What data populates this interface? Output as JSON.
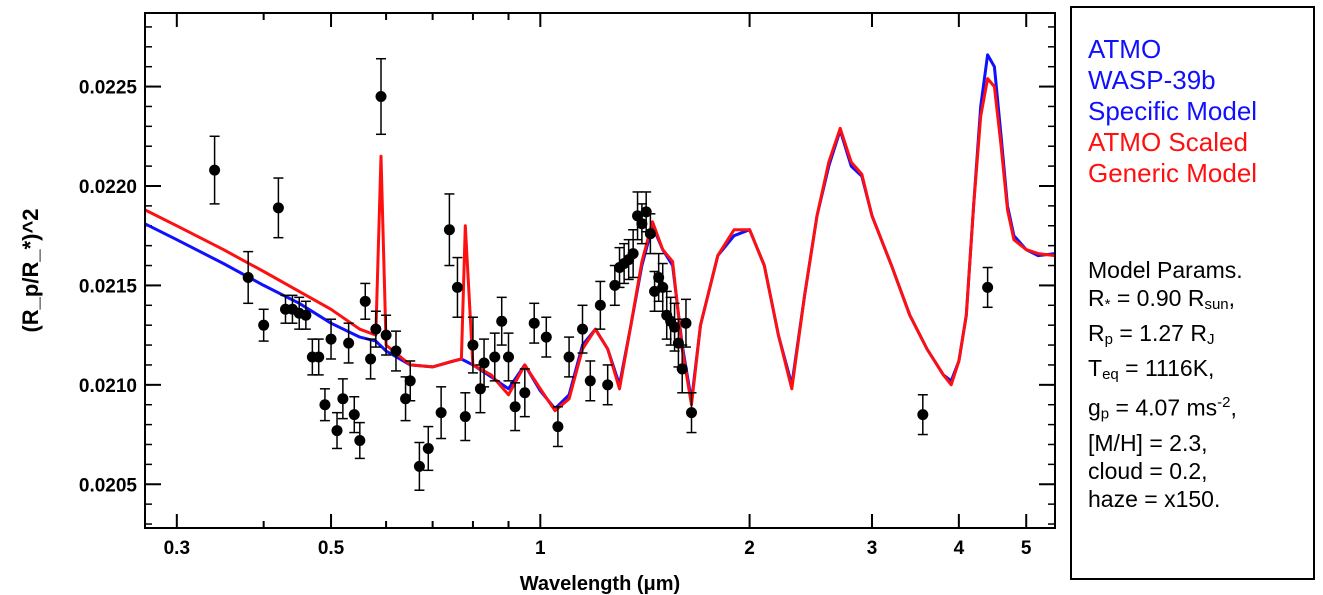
{
  "chart_data": {
    "type": "line",
    "xlabel": "Wavelength (μm)",
    "ylabel": "(R_p/R_*)^2",
    "xscale": "log",
    "xlim": [
      0.27,
      5.5
    ],
    "ylim": [
      0.02028,
      0.02287
    ],
    "xticks": [
      {
        "value": 0.3,
        "label": "0.3"
      },
      {
        "value": 0.5,
        "label": "0.5"
      },
      {
        "value": 1,
        "label": "1"
      },
      {
        "value": 2,
        "label": "2"
      },
      {
        "value": 3,
        "label": "3"
      },
      {
        "value": 4,
        "label": "4"
      },
      {
        "value": 5,
        "label": "5"
      }
    ],
    "yticks": [
      {
        "value": 0.0205,
        "label": "0.0205"
      },
      {
        "value": 0.021,
        "label": "0.0210"
      },
      {
        "value": 0.0215,
        "label": "0.0215"
      },
      {
        "value": 0.022,
        "label": "0.0220"
      },
      {
        "value": 0.0225,
        "label": "0.0225"
      }
    ],
    "series": [
      {
        "name": "ATMO WASP-39b Specific Model",
        "color": "#1010ff",
        "x": [
          0.27,
          0.3,
          0.35,
          0.4,
          0.45,
          0.5,
          0.55,
          0.58,
          0.6,
          0.65,
          0.7,
          0.75,
          0.77,
          0.8,
          0.85,
          0.9,
          0.95,
          1.0,
          1.05,
          1.1,
          1.15,
          1.2,
          1.25,
          1.3,
          1.35,
          1.4,
          1.45,
          1.5,
          1.55,
          1.6,
          1.65,
          1.7,
          1.8,
          1.9,
          2.0,
          2.1,
          2.2,
          2.3,
          2.4,
          2.5,
          2.6,
          2.7,
          2.8,
          2.9,
          3.0,
          3.2,
          3.4,
          3.6,
          3.8,
          3.9,
          4.0,
          4.1,
          4.2,
          4.3,
          4.4,
          4.5,
          4.6,
          4.7,
          4.8,
          5.0,
          5.2,
          5.5
        ],
        "y": [
          0.02181,
          0.02173,
          0.02161,
          0.0215,
          0.02141,
          0.02131,
          0.02124,
          0.02122,
          0.02117,
          0.0211,
          0.02109,
          0.02112,
          0.02113,
          0.0211,
          0.02104,
          0.02098,
          0.0211,
          0.02097,
          0.02088,
          0.02095,
          0.0212,
          0.02128,
          0.02118,
          0.021,
          0.0213,
          0.0216,
          0.0218,
          0.02168,
          0.0216,
          0.0212,
          0.02092,
          0.0213,
          0.02165,
          0.02175,
          0.02178,
          0.0216,
          0.02125,
          0.021,
          0.02145,
          0.02185,
          0.0221,
          0.02228,
          0.0221,
          0.02205,
          0.02185,
          0.0216,
          0.02135,
          0.02118,
          0.02105,
          0.02102,
          0.02112,
          0.02135,
          0.0219,
          0.0224,
          0.02266,
          0.0226,
          0.02225,
          0.0219,
          0.02175,
          0.02168,
          0.02165,
          0.02166
        ]
      },
      {
        "name": "ATMO Scaled Generic Model",
        "color": "#ff1010",
        "x": [
          0.27,
          0.3,
          0.35,
          0.4,
          0.45,
          0.5,
          0.55,
          0.58,
          0.59,
          0.6,
          0.65,
          0.7,
          0.75,
          0.77,
          0.78,
          0.8,
          0.85,
          0.9,
          0.95,
          1.0,
          1.05,
          1.1,
          1.15,
          1.2,
          1.25,
          1.3,
          1.35,
          1.4,
          1.45,
          1.5,
          1.55,
          1.6,
          1.65,
          1.7,
          1.8,
          1.9,
          2.0,
          2.1,
          2.2,
          2.3,
          2.4,
          2.5,
          2.6,
          2.7,
          2.8,
          2.9,
          3.0,
          3.2,
          3.4,
          3.6,
          3.8,
          3.9,
          4.0,
          4.1,
          4.2,
          4.3,
          4.4,
          4.5,
          4.6,
          4.7,
          4.8,
          5.0,
          5.2,
          5.5
        ],
        "y": [
          0.02188,
          0.0218,
          0.02168,
          0.02157,
          0.02147,
          0.02138,
          0.02128,
          0.02125,
          0.02215,
          0.0212,
          0.0211,
          0.02109,
          0.02112,
          0.02113,
          0.0218,
          0.0211,
          0.02105,
          0.02095,
          0.0211,
          0.02098,
          0.02087,
          0.02093,
          0.02118,
          0.02128,
          0.02118,
          0.02098,
          0.0213,
          0.02162,
          0.02182,
          0.02168,
          0.02162,
          0.02118,
          0.0209,
          0.0213,
          0.02165,
          0.02178,
          0.02178,
          0.0216,
          0.02125,
          0.02098,
          0.02145,
          0.02185,
          0.02212,
          0.02229,
          0.02212,
          0.02206,
          0.02185,
          0.0216,
          0.02135,
          0.02118,
          0.02105,
          0.021,
          0.02112,
          0.02135,
          0.0219,
          0.02235,
          0.02254,
          0.0225,
          0.0222,
          0.02188,
          0.02173,
          0.02168,
          0.02166,
          0.02165
        ]
      },
      {
        "name": "data",
        "color": "#000000",
        "type": "scatter",
        "x": [
          0.34,
          0.38,
          0.4,
          0.42,
          0.43,
          0.44,
          0.45,
          0.46,
          0.47,
          0.48,
          0.49,
          0.5,
          0.51,
          0.52,
          0.53,
          0.54,
          0.55,
          0.56,
          0.57,
          0.58,
          0.59,
          0.6,
          0.62,
          0.64,
          0.65,
          0.67,
          0.69,
          0.72,
          0.74,
          0.76,
          0.78,
          0.8,
          0.82,
          0.83,
          0.86,
          0.88,
          0.9,
          0.92,
          0.95,
          0.98,
          1.02,
          1.06,
          1.1,
          1.15,
          1.18,
          1.22,
          1.25,
          1.28,
          1.3,
          1.32,
          1.34,
          1.36,
          1.38,
          1.4,
          1.42,
          1.44,
          1.46,
          1.48,
          1.5,
          1.52,
          1.54,
          1.56,
          1.58,
          1.6,
          1.62,
          1.65,
          4.4,
          3.55
        ],
        "y": [
          0.02208,
          0.02154,
          0.0213,
          0.02189,
          0.02138,
          0.02138,
          0.02136,
          0.02135,
          0.02114,
          0.02114,
          0.0209,
          0.02123,
          0.02077,
          0.02093,
          0.02121,
          0.02085,
          0.02072,
          0.02142,
          0.02113,
          0.02128,
          0.02245,
          0.02125,
          0.02117,
          0.02093,
          0.02102,
          0.02059,
          0.02068,
          0.02086,
          0.02178,
          0.02149,
          0.02084,
          0.0212,
          0.02098,
          0.02111,
          0.02114,
          0.02132,
          0.02114,
          0.02089,
          0.02096,
          0.02131,
          0.02124,
          0.02079,
          0.02114,
          0.02128,
          0.02102,
          0.0214,
          0.021,
          0.0215,
          0.02159,
          0.02161,
          0.02163,
          0.02166,
          0.02185,
          0.02181,
          0.02187,
          0.02176,
          0.02147,
          0.02154,
          0.02149,
          0.02135,
          0.02132,
          0.02129,
          0.02121,
          0.02108,
          0.02131,
          0.02086,
          0.02149,
          0.02085
        ],
        "yerr": [
          0.00017,
          0.00013,
          8e-05,
          0.00015,
          7e-05,
          7e-05,
          8e-05,
          7e-05,
          9e-05,
          9e-05,
          8e-05,
          0.0001,
          9e-05,
          0.0001,
          0.0001,
          9e-05,
          9e-05,
          9e-05,
          0.0001,
          9e-05,
          0.00019,
          0.0001,
          0.0001,
          0.00011,
          0.0001,
          0.00012,
          0.00011,
          0.00013,
          0.00018,
          0.00015,
          0.00012,
          0.00014,
          0.00012,
          0.00012,
          0.00012,
          0.00012,
          0.00012,
          0.00012,
          0.00012,
          0.0001,
          0.0001,
          0.0001,
          0.0001,
          0.00012,
          0.0001,
          0.00012,
          0.0001,
          0.0001,
          0.0001,
          0.0001,
          0.0001,
          0.00012,
          0.00012,
          0.0001,
          0.0001,
          0.0001,
          0.0001,
          0.00012,
          0.00012,
          0.00012,
          0.00012,
          0.00012,
          0.00012,
          0.00012,
          0.00012,
          0.0001,
          0.0001,
          0.0001
        ]
      }
    ],
    "legend_placement": "right-outside"
  },
  "legend": {
    "blue_lines": [
      "ATMO",
      "WASP-39b",
      "Specific Model"
    ],
    "red_lines": [
      "ATMO Scaled",
      "Generic Model"
    ]
  },
  "params": {
    "title": "Model Params.",
    "rstar_label": "R",
    "rstar_sub": "*",
    "rstar_value": " = 0.90 R",
    "rstar_unit_sub": "sun",
    "rstar_end": ",",
    "rp_label": "R",
    "rp_sub": "p",
    "rp_value": " = 1.27 R",
    "rp_unit_sub": "J",
    "teq_label": "T",
    "teq_sub": "eq",
    "teq_value": " = 1116K,",
    "gp_label": "g",
    "gp_sub": "p",
    "gp_value": " = 4.07 ms",
    "gp_sup": "-2",
    "gp_end": ",",
    "mh": "[M/H] = 2.3,",
    "cloud": "cloud = 0.2,",
    "haze": "haze = x150."
  }
}
